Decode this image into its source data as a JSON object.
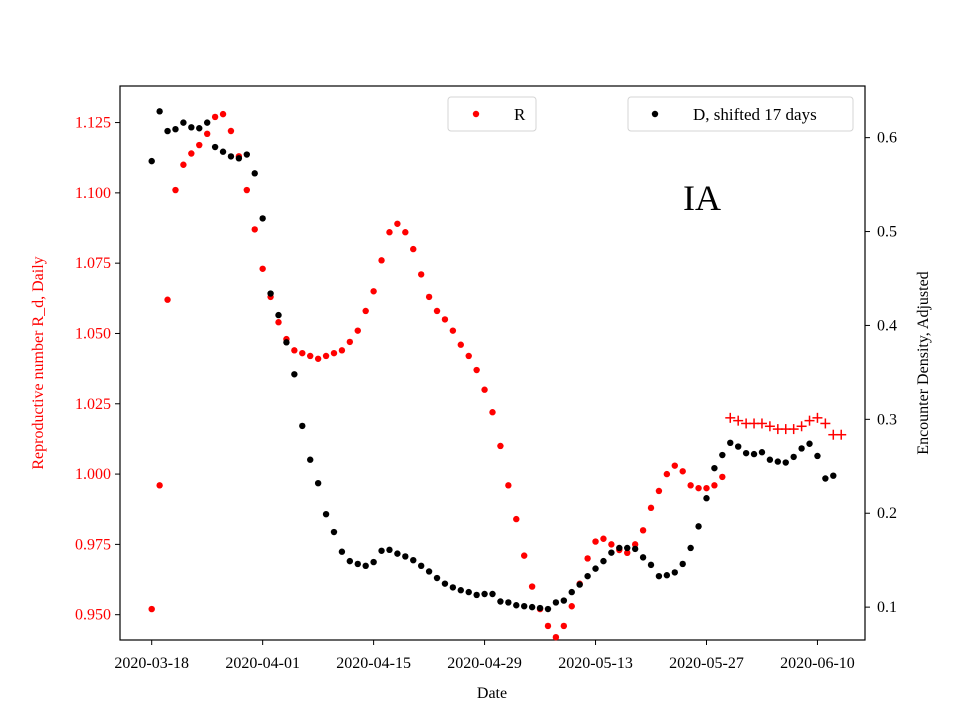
{
  "chart_data": {
    "type": "scatter",
    "panel_label": "IA",
    "xlabel": "Date",
    "ylabel_left": "Reproductive number R_d, Daily",
    "ylabel_right": "Encounter Density, Adjusted",
    "x_ticks": [
      "2020-03-18",
      "2020-04-01",
      "2020-04-15",
      "2020-04-29",
      "2020-05-13",
      "2020-05-27",
      "2020-06-10"
    ],
    "x_range": [
      "2020-03-14",
      "2020-06-16"
    ],
    "y_left_ticks": [
      "0.950",
      "0.975",
      "1.000",
      "1.025",
      "1.050",
      "1.075",
      "1.100",
      "1.125"
    ],
    "y_left_range": [
      0.941,
      1.138
    ],
    "y_right_ticks": [
      "0.1",
      "0.2",
      "0.3",
      "0.4",
      "0.5",
      "0.6"
    ],
    "y_right_range": [
      0.065,
      0.655
    ],
    "colors": {
      "r_series": "#ff0000",
      "d_series": "#000000",
      "left_axis": "#ff0000",
      "right_axis": "#000000"
    },
    "legends": [
      {
        "label": "R",
        "color": "#ff0000",
        "position": "top-center"
      },
      {
        "label": "D, shifted 17 days",
        "color": "#000000",
        "position": "top-right"
      }
    ],
    "series": [
      {
        "name": "R",
        "axis": "left",
        "marker": "dot",
        "color": "#ff0000",
        "points": [
          [
            "2020-03-18",
            0.952
          ],
          [
            "2020-03-19",
            0.996
          ],
          [
            "2020-03-20",
            1.062
          ],
          [
            "2020-03-21",
            1.101
          ],
          [
            "2020-03-22",
            1.11
          ],
          [
            "2020-03-23",
            1.114
          ],
          [
            "2020-03-24",
            1.117
          ],
          [
            "2020-03-25",
            1.121
          ],
          [
            "2020-03-26",
            1.127
          ],
          [
            "2020-03-27",
            1.128
          ],
          [
            "2020-03-28",
            1.122
          ],
          [
            "2020-03-29",
            1.113
          ],
          [
            "2020-03-30",
            1.101
          ],
          [
            "2020-03-31",
            1.087
          ],
          [
            "2020-04-01",
            1.073
          ],
          [
            "2020-04-02",
            1.063
          ],
          [
            "2020-04-03",
            1.054
          ],
          [
            "2020-04-04",
            1.048
          ],
          [
            "2020-04-05",
            1.044
          ],
          [
            "2020-04-06",
            1.043
          ],
          [
            "2020-04-07",
            1.042
          ],
          [
            "2020-04-08",
            1.041
          ],
          [
            "2020-04-09",
            1.042
          ],
          [
            "2020-04-10",
            1.043
          ],
          [
            "2020-04-11",
            1.044
          ],
          [
            "2020-04-12",
            1.047
          ],
          [
            "2020-04-13",
            1.051
          ],
          [
            "2020-04-14",
            1.058
          ],
          [
            "2020-04-15",
            1.065
          ],
          [
            "2020-04-16",
            1.076
          ],
          [
            "2020-04-17",
            1.086
          ],
          [
            "2020-04-18",
            1.089
          ],
          [
            "2020-04-19",
            1.086
          ],
          [
            "2020-04-20",
            1.08
          ],
          [
            "2020-04-21",
            1.071
          ],
          [
            "2020-04-22",
            1.063
          ],
          [
            "2020-04-23",
            1.058
          ],
          [
            "2020-04-24",
            1.055
          ],
          [
            "2020-04-25",
            1.051
          ],
          [
            "2020-04-26",
            1.046
          ],
          [
            "2020-04-27",
            1.042
          ],
          [
            "2020-04-28",
            1.037
          ],
          [
            "2020-04-29",
            1.03
          ],
          [
            "2020-04-30",
            1.022
          ],
          [
            "2020-05-01",
            1.01
          ],
          [
            "2020-05-02",
            0.996
          ],
          [
            "2020-05-03",
            0.984
          ],
          [
            "2020-05-04",
            0.971
          ],
          [
            "2020-05-05",
            0.96
          ],
          [
            "2020-05-06",
            0.952
          ],
          [
            "2020-05-07",
            0.946
          ],
          [
            "2020-05-08",
            0.942
          ],
          [
            "2020-05-09",
            0.946
          ],
          [
            "2020-05-10",
            0.953
          ],
          [
            "2020-05-11",
            0.961
          ],
          [
            "2020-05-12",
            0.97
          ],
          [
            "2020-05-13",
            0.976
          ],
          [
            "2020-05-14",
            0.977
          ],
          [
            "2020-05-15",
            0.975
          ],
          [
            "2020-05-16",
            0.973
          ],
          [
            "2020-05-17",
            0.972
          ],
          [
            "2020-05-18",
            0.975
          ],
          [
            "2020-05-19",
            0.98
          ],
          [
            "2020-05-20",
            0.988
          ],
          [
            "2020-05-21",
            0.994
          ],
          [
            "2020-05-22",
            1.0
          ],
          [
            "2020-05-23",
            1.003
          ],
          [
            "2020-05-24",
            1.001
          ],
          [
            "2020-05-25",
            0.996
          ],
          [
            "2020-05-26",
            0.995
          ],
          [
            "2020-05-27",
            0.995
          ],
          [
            "2020-05-28",
            0.996
          ],
          [
            "2020-05-29",
            0.999
          ]
        ]
      },
      {
        "name": "R",
        "axis": "left",
        "marker": "plus",
        "color": "#ff0000",
        "points": [
          [
            "2020-05-30",
            1.02
          ],
          [
            "2020-05-31",
            1.019
          ],
          [
            "2020-06-01",
            1.018
          ],
          [
            "2020-06-02",
            1.018
          ],
          [
            "2020-06-03",
            1.018
          ],
          [
            "2020-06-04",
            1.017
          ],
          [
            "2020-06-05",
            1.016
          ],
          [
            "2020-06-06",
            1.016
          ],
          [
            "2020-06-07",
            1.016
          ],
          [
            "2020-06-08",
            1.017
          ],
          [
            "2020-06-09",
            1.019
          ],
          [
            "2020-06-10",
            1.02
          ],
          [
            "2020-06-11",
            1.018
          ],
          [
            "2020-06-12",
            1.014
          ],
          [
            "2020-06-13",
            1.014
          ]
        ]
      },
      {
        "name": "D, shifted 17 days",
        "axis": "right",
        "marker": "dot",
        "color": "#000000",
        "points": [
          [
            "2020-03-18",
            0.575
          ],
          [
            "2020-03-19",
            0.628
          ],
          [
            "2020-03-20",
            0.607
          ],
          [
            "2020-03-21",
            0.609
          ],
          [
            "2020-03-22",
            0.616
          ],
          [
            "2020-03-23",
            0.611
          ],
          [
            "2020-03-24",
            0.61
          ],
          [
            "2020-03-25",
            0.616
          ],
          [
            "2020-03-26",
            0.59
          ],
          [
            "2020-03-27",
            0.585
          ],
          [
            "2020-03-28",
            0.58
          ],
          [
            "2020-03-29",
            0.578
          ],
          [
            "2020-03-30",
            0.582
          ],
          [
            "2020-03-31",
            0.562
          ],
          [
            "2020-04-01",
            0.514
          ],
          [
            "2020-04-02",
            0.434
          ],
          [
            "2020-04-03",
            0.411
          ],
          [
            "2020-04-04",
            0.382
          ],
          [
            "2020-04-05",
            0.348
          ],
          [
            "2020-04-06",
            0.293
          ],
          [
            "2020-04-07",
            0.257
          ],
          [
            "2020-04-08",
            0.232
          ],
          [
            "2020-04-09",
            0.199
          ],
          [
            "2020-04-10",
            0.18
          ],
          [
            "2020-04-11",
            0.159
          ],
          [
            "2020-04-12",
            0.149
          ],
          [
            "2020-04-13",
            0.146
          ],
          [
            "2020-04-14",
            0.144
          ],
          [
            "2020-04-15",
            0.148
          ],
          [
            "2020-04-16",
            0.16
          ],
          [
            "2020-04-17",
            0.161
          ],
          [
            "2020-04-18",
            0.157
          ],
          [
            "2020-04-19",
            0.154
          ],
          [
            "2020-04-20",
            0.15
          ],
          [
            "2020-04-21",
            0.144
          ],
          [
            "2020-04-22",
            0.138
          ],
          [
            "2020-04-23",
            0.131
          ],
          [
            "2020-04-24",
            0.125
          ],
          [
            "2020-04-25",
            0.121
          ],
          [
            "2020-04-26",
            0.118
          ],
          [
            "2020-04-27",
            0.116
          ],
          [
            "2020-04-28",
            0.113
          ],
          [
            "2020-04-29",
            0.114
          ],
          [
            "2020-04-30",
            0.114
          ],
          [
            "2020-05-01",
            0.106
          ],
          [
            "2020-05-02",
            0.105
          ],
          [
            "2020-05-03",
            0.102
          ],
          [
            "2020-05-04",
            0.101
          ],
          [
            "2020-05-05",
            0.1
          ],
          [
            "2020-05-06",
            0.099
          ],
          [
            "2020-05-07",
            0.098
          ],
          [
            "2020-05-08",
            0.105
          ],
          [
            "2020-05-09",
            0.107
          ],
          [
            "2020-05-10",
            0.116
          ],
          [
            "2020-05-11",
            0.124
          ],
          [
            "2020-05-12",
            0.133
          ],
          [
            "2020-05-13",
            0.141
          ],
          [
            "2020-05-14",
            0.149
          ],
          [
            "2020-05-15",
            0.158
          ],
          [
            "2020-05-16",
            0.163
          ],
          [
            "2020-05-17",
            0.163
          ],
          [
            "2020-05-18",
            0.162
          ],
          [
            "2020-05-19",
            0.153
          ],
          [
            "2020-05-20",
            0.145
          ],
          [
            "2020-05-21",
            0.133
          ],
          [
            "2020-05-22",
            0.134
          ],
          [
            "2020-05-23",
            0.137
          ],
          [
            "2020-05-24",
            0.146
          ],
          [
            "2020-05-25",
            0.163
          ],
          [
            "2020-05-26",
            0.186
          ],
          [
            "2020-05-27",
            0.216
          ],
          [
            "2020-05-28",
            0.248
          ],
          [
            "2020-05-29",
            0.262
          ],
          [
            "2020-05-30",
            0.275
          ],
          [
            "2020-05-31",
            0.271
          ],
          [
            "2020-06-01",
            0.264
          ],
          [
            "2020-06-02",
            0.263
          ],
          [
            "2020-06-03",
            0.265
          ],
          [
            "2020-06-04",
            0.257
          ],
          [
            "2020-06-05",
            0.255
          ],
          [
            "2020-06-06",
            0.254
          ],
          [
            "2020-06-07",
            0.26
          ],
          [
            "2020-06-08",
            0.269
          ],
          [
            "2020-06-09",
            0.274
          ],
          [
            "2020-06-10",
            0.261
          ],
          [
            "2020-06-11",
            0.237
          ],
          [
            "2020-06-12",
            0.24
          ]
        ]
      }
    ]
  }
}
